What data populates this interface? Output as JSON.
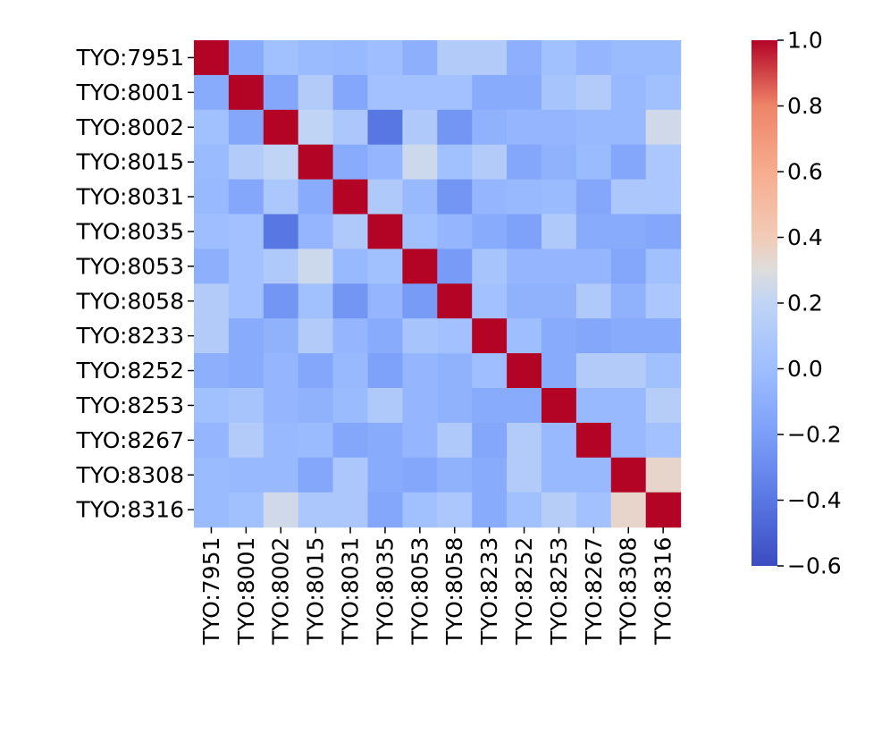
{
  "chart_data": {
    "type": "heatmap",
    "title": "",
    "xlabel": "",
    "ylabel": "",
    "labels": [
      "TYO:7951",
      "TYO:8001",
      "TYO:8002",
      "TYO:8015",
      "TYO:8031",
      "TYO:8035",
      "TYO:8053",
      "TYO:8058",
      "TYO:8233",
      "TYO:8252",
      "TYO:8253",
      "TYO:8267",
      "TYO:8308",
      "TYO:8316"
    ],
    "matrix": [
      [
        1.0,
        -0.12,
        0.02,
        -0.02,
        -0.03,
        0.0,
        -0.1,
        0.12,
        0.12,
        -0.1,
        0.02,
        -0.05,
        -0.02,
        -0.02
      ],
      [
        -0.12,
        1.0,
        -0.15,
        0.12,
        -0.15,
        0.03,
        0.03,
        0.03,
        -0.12,
        -0.12,
        0.05,
        0.12,
        -0.03,
        0.02
      ],
      [
        0.02,
        -0.15,
        1.0,
        0.2,
        0.08,
        -0.4,
        0.1,
        -0.25,
        -0.08,
        -0.05,
        -0.05,
        -0.03,
        -0.03,
        0.25
      ],
      [
        -0.02,
        0.12,
        0.2,
        1.0,
        -0.12,
        -0.05,
        0.24,
        0.02,
        0.12,
        -0.15,
        -0.08,
        -0.02,
        -0.15,
        0.08
      ],
      [
        -0.03,
        -0.15,
        0.08,
        -0.12,
        1.0,
        0.1,
        -0.03,
        -0.25,
        -0.05,
        -0.03,
        -0.02,
        -0.15,
        0.08,
        0.08
      ],
      [
        0.0,
        0.03,
        -0.4,
        -0.05,
        0.1,
        1.0,
        0.02,
        -0.05,
        -0.12,
        -0.18,
        0.1,
        -0.12,
        -0.12,
        -0.15
      ],
      [
        -0.1,
        0.03,
        0.1,
        0.24,
        -0.03,
        0.02,
        1.0,
        -0.22,
        0.05,
        -0.05,
        -0.05,
        -0.05,
        -0.15,
        0.02
      ],
      [
        0.12,
        0.03,
        -0.25,
        0.02,
        -0.25,
        -0.05,
        -0.22,
        1.0,
        0.03,
        -0.08,
        -0.08,
        0.1,
        -0.08,
        0.08
      ],
      [
        0.12,
        -0.12,
        -0.08,
        0.12,
        -0.05,
        -0.12,
        0.05,
        0.03,
        1.0,
        0.0,
        -0.12,
        -0.15,
        -0.12,
        -0.12
      ],
      [
        -0.1,
        -0.12,
        -0.05,
        -0.15,
        -0.03,
        -0.18,
        -0.05,
        -0.08,
        0.0,
        1.0,
        -0.12,
        0.12,
        0.12,
        0.02
      ],
      [
        0.02,
        0.05,
        -0.05,
        -0.08,
        -0.02,
        0.1,
        -0.05,
        -0.08,
        -0.12,
        -0.12,
        1.0,
        -0.03,
        -0.03,
        0.14
      ],
      [
        -0.05,
        0.12,
        -0.03,
        -0.02,
        -0.15,
        -0.12,
        -0.05,
        0.1,
        -0.15,
        0.12,
        -0.03,
        1.0,
        -0.03,
        0.03
      ],
      [
        -0.02,
        -0.03,
        -0.03,
        -0.15,
        0.08,
        -0.12,
        -0.15,
        -0.08,
        -0.12,
        0.12,
        -0.03,
        -0.03,
        1.0,
        0.35
      ],
      [
        -0.02,
        0.02,
        0.25,
        0.08,
        0.08,
        -0.15,
        0.02,
        0.08,
        -0.12,
        0.02,
        0.14,
        0.03,
        0.35,
        1.0
      ]
    ],
    "colormap": "coolwarm",
    "vmin": -0.6,
    "vmax": 1.0,
    "colorbar_ticks": [
      1.0,
      0.8,
      0.6,
      0.4,
      0.2,
      0.0,
      -0.2,
      -0.4,
      -0.6
    ],
    "colorbar_tick_labels": [
      "1.0",
      "0.8",
      "0.6",
      "0.4",
      "0.2",
      "0.0",
      "−0.2",
      "−0.4",
      "−0.6"
    ]
  }
}
